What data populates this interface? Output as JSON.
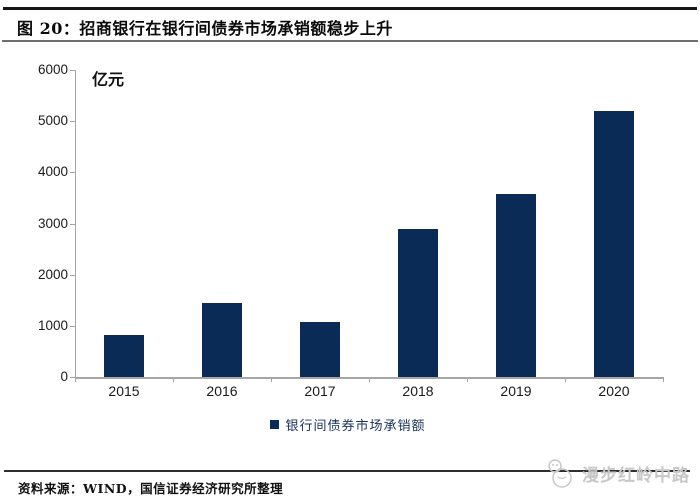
{
  "title": {
    "label": "图 20：招商银行在银行间债券市场承销额稳步上升"
  },
  "chart_data": {
    "type": "bar",
    "title": "招商银行在银行间债券市场承销额",
    "xlabel": "",
    "ylabel": "亿元",
    "categories": [
      "2015",
      "2016",
      "2017",
      "2018",
      "2019",
      "2020"
    ],
    "values": [
      830,
      1450,
      1080,
      2890,
      3570,
      5190
    ],
    "series_name": "银行间债券市场承销额",
    "ylim": [
      0,
      6000
    ],
    "ytick_step": 1000,
    "grid": false,
    "legend_position": "bottom",
    "bar_color": "#0a2b55",
    "axis_color": "#a6a6a6",
    "tick_label_color": "#1a1a1a",
    "legend_text_color": "#16325a"
  },
  "footer": {
    "source_label": "资料来源：WIND，国信证券经济研究所整理"
  },
  "watermark": {
    "text": "漫步红岭中路",
    "color": "#c8c8c8"
  }
}
